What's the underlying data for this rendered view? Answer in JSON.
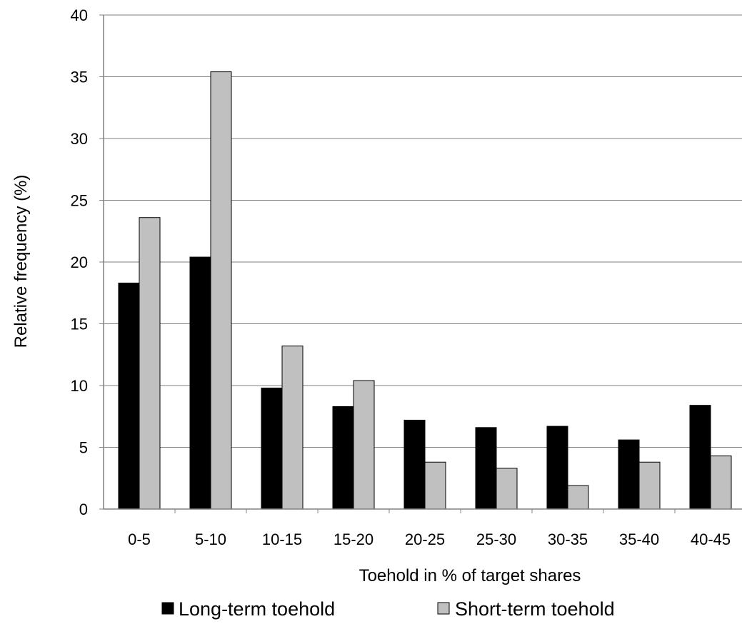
{
  "chart_data": {
    "type": "bar",
    "title": "",
    "xlabel": "Toehold  in % of target shares",
    "ylabel": "Relative frequency (%)",
    "ylim": [
      0,
      40
    ],
    "yticks": [
      "0",
      "5",
      "10",
      "15",
      "20",
      "25",
      "30",
      "35",
      "40"
    ],
    "grid": true,
    "legend_position": "bottom",
    "categories": [
      "0-5",
      "5-10",
      "10-15",
      "15-20",
      "20-25",
      "25-30",
      "30-35",
      "35-40",
      "40-45"
    ],
    "series": [
      {
        "name": "Long-term toehold",
        "color": "#000000",
        "values": [
          18.3,
          20.4,
          9.8,
          8.3,
          7.2,
          6.6,
          6.7,
          5.6,
          8.4
        ]
      },
      {
        "name": "Short-term toehold",
        "color": "#c0c0c0",
        "values": [
          23.6,
          35.4,
          13.2,
          10.4,
          3.8,
          3.3,
          1.9,
          3.8,
          4.3
        ]
      }
    ]
  }
}
